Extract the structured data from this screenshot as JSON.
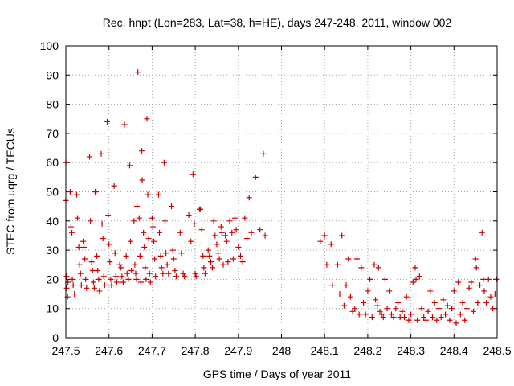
{
  "chart_data": {
    "type": "scatter",
    "title": "Rec. hnpt (Lon=283, Lat=38, h=HE), days 247-248, 2011, window 002",
    "xlabel": "GPS time / Days of year 2011",
    "ylabel": "STEC from uqrg / TECUs",
    "xlim": [
      247.5,
      248.5
    ],
    "ylim": [
      0,
      100
    ],
    "xticks": [
      247.5,
      247.6,
      247.7,
      247.8,
      247.9,
      248,
      248.1,
      248.2,
      248.3,
      248.4,
      248.5
    ],
    "xtick_labels": [
      "247.5",
      "247.6",
      "247.7",
      "247.8",
      "247.9",
      "248",
      "248.1",
      "248.2",
      "248.3",
      "248.4",
      "248.5"
    ],
    "yticks": [
      0,
      10,
      20,
      30,
      40,
      50,
      60,
      70,
      80,
      90,
      100
    ],
    "ytick_labels": [
      "0",
      "10",
      "20",
      "30",
      "40",
      "50",
      "60",
      "70",
      "80",
      "90",
      "100"
    ],
    "grid": true,
    "marker": "+",
    "color": "#cc0000",
    "points": [
      [
        247.5,
        60
      ],
      [
        247.5,
        47
      ],
      [
        247.502,
        21
      ],
      [
        247.502,
        17
      ],
      [
        247.504,
        14
      ],
      [
        247.505,
        19
      ],
      [
        247.51,
        50
      ],
      [
        247.512,
        38
      ],
      [
        247.514,
        36
      ],
      [
        247.515,
        20
      ],
      [
        247.517,
        18
      ],
      [
        247.52,
        15
      ],
      [
        247.525,
        49
      ],
      [
        247.527,
        41
      ],
      [
        247.53,
        31
      ],
      [
        247.532,
        25
      ],
      [
        247.534,
        22
      ],
      [
        247.536,
        18
      ],
      [
        247.54,
        33
      ],
      [
        247.542,
        31
      ],
      [
        247.544,
        27
      ],
      [
        247.546,
        20
      ],
      [
        247.548,
        17
      ],
      [
        247.555,
        62
      ],
      [
        247.557,
        40
      ],
      [
        247.56,
        26
      ],
      [
        247.562,
        23
      ],
      [
        247.564,
        19
      ],
      [
        247.566,
        17
      ],
      [
        247.568,
        50
      ],
      [
        247.57,
        50
      ],
      [
        247.572,
        28
      ],
      [
        247.574,
        23
      ],
      [
        247.576,
        20
      ],
      [
        247.578,
        16
      ],
      [
        247.582,
        63
      ],
      [
        247.584,
        39
      ],
      [
        247.586,
        34
      ],
      [
        247.588,
        21
      ],
      [
        247.59,
        18
      ],
      [
        247.596,
        74
      ],
      [
        247.598,
        42
      ],
      [
        247.6,
        32
      ],
      [
        247.602,
        26
      ],
      [
        247.604,
        20
      ],
      [
        247.606,
        18
      ],
      [
        247.612,
        52
      ],
      [
        247.614,
        29
      ],
      [
        247.616,
        21
      ],
      [
        247.618,
        19
      ],
      [
        247.625,
        25
      ],
      [
        247.628,
        24
      ],
      [
        247.63,
        21
      ],
      [
        247.633,
        19
      ],
      [
        247.636,
        73
      ],
      [
        247.64,
        28
      ],
      [
        247.642,
        22
      ],
      [
        247.645,
        20
      ],
      [
        247.648,
        59
      ],
      [
        247.65,
        33
      ],
      [
        247.652,
        23
      ],
      [
        247.658,
        40
      ],
      [
        247.66,
        25
      ],
      [
        247.662,
        22
      ],
      [
        247.664,
        20
      ],
      [
        247.665,
        45
      ],
      [
        247.667,
        91
      ],
      [
        247.67,
        41
      ],
      [
        247.672,
        28
      ],
      [
        247.674,
        19
      ],
      [
        247.676,
        64
      ],
      [
        247.677,
        54
      ],
      [
        247.68,
        36
      ],
      [
        247.682,
        31
      ],
      [
        247.684,
        24
      ],
      [
        247.686,
        20
      ],
      [
        247.688,
        75
      ],
      [
        247.69,
        49
      ],
      [
        247.692,
        34
      ],
      [
        247.694,
        22
      ],
      [
        247.696,
        19
      ],
      [
        247.7,
        41
      ],
      [
        247.702,
        38
      ],
      [
        247.704,
        33
      ],
      [
        247.706,
        27
      ],
      [
        247.708,
        21
      ],
      [
        247.715,
        49
      ],
      [
        247.717,
        36
      ],
      [
        247.72,
        28
      ],
      [
        247.722,
        24
      ],
      [
        247.725,
        22
      ],
      [
        247.728,
        60
      ],
      [
        247.73,
        40
      ],
      [
        247.732,
        29
      ],
      [
        247.735,
        25
      ],
      [
        247.738,
        22
      ],
      [
        247.745,
        45
      ],
      [
        247.748,
        30
      ],
      [
        247.75,
        27
      ],
      [
        247.753,
        23
      ],
      [
        247.756,
        21
      ],
      [
        247.765,
        36
      ],
      [
        247.768,
        29
      ],
      [
        247.772,
        22
      ],
      [
        247.775,
        21
      ],
      [
        247.785,
        42
      ],
      [
        247.79,
        33
      ],
      [
        247.795,
        56
      ],
      [
        247.798,
        39
      ],
      [
        247.8,
        22
      ],
      [
        247.802,
        21
      ],
      [
        247.81,
        44
      ],
      [
        247.812,
        44
      ],
      [
        247.815,
        37
      ],
      [
        247.818,
        28
      ],
      [
        247.82,
        24
      ],
      [
        247.823,
        22
      ],
      [
        247.83,
        30
      ],
      [
        247.833,
        28
      ],
      [
        247.836,
        26
      ],
      [
        247.84,
        24
      ],
      [
        247.843,
        40
      ],
      [
        247.846,
        35
      ],
      [
        247.85,
        32
      ],
      [
        247.853,
        29
      ],
      [
        247.856,
        27
      ],
      [
        247.86,
        38
      ],
      [
        247.862,
        36
      ],
      [
        247.865,
        25
      ],
      [
        247.87,
        35
      ],
      [
        247.873,
        33
      ],
      [
        247.876,
        26
      ],
      [
        247.88,
        40
      ],
      [
        247.885,
        36
      ],
      [
        247.888,
        27
      ],
      [
        247.892,
        41
      ],
      [
        247.895,
        37
      ],
      [
        247.9,
        31
      ],
      [
        247.905,
        28
      ],
      [
        247.91,
        26
      ],
      [
        247.915,
        41
      ],
      [
        247.92,
        34
      ],
      [
        247.925,
        48
      ],
      [
        247.93,
        36
      ],
      [
        247.94,
        55
      ],
      [
        247.95,
        37
      ],
      [
        247.958,
        63
      ],
      [
        247.962,
        35
      ],
      [
        248.09,
        33
      ],
      [
        248.1,
        35
      ],
      [
        248.105,
        25
      ],
      [
        248.115,
        32
      ],
      [
        248.118,
        18
      ],
      [
        248.13,
        25
      ],
      [
        248.135,
        15
      ],
      [
        248.14,
        35
      ],
      [
        248.145,
        11
      ],
      [
        248.15,
        18
      ],
      [
        248.155,
        27
      ],
      [
        248.16,
        14
      ],
      [
        248.165,
        9
      ],
      [
        248.17,
        10
      ],
      [
        248.175,
        27
      ],
      [
        248.18,
        8
      ],
      [
        248.185,
        24
      ],
      [
        248.19,
        12
      ],
      [
        248.195,
        8
      ],
      [
        248.2,
        16
      ],
      [
        248.205,
        20
      ],
      [
        248.21,
        7
      ],
      [
        248.215,
        25
      ],
      [
        248.218,
        13
      ],
      [
        248.222,
        11
      ],
      [
        248.225,
        24
      ],
      [
        248.228,
        9
      ],
      [
        248.232,
        8
      ],
      [
        248.236,
        7
      ],
      [
        248.24,
        20
      ],
      [
        248.245,
        10
      ],
      [
        248.25,
        16
      ],
      [
        248.255,
        8
      ],
      [
        248.26,
        7
      ],
      [
        248.265,
        10
      ],
      [
        248.27,
        12
      ],
      [
        248.275,
        7
      ],
      [
        248.28,
        9
      ],
      [
        248.285,
        7
      ],
      [
        248.29,
        14
      ],
      [
        248.295,
        6
      ],
      [
        248.3,
        8
      ],
      [
        248.305,
        19
      ],
      [
        248.31,
        24
      ],
      [
        248.312,
        20
      ],
      [
        248.315,
        6
      ],
      [
        248.32,
        21
      ],
      [
        248.325,
        10
      ],
      [
        248.33,
        7
      ],
      [
        248.335,
        6
      ],
      [
        248.34,
        9
      ],
      [
        248.345,
        16
      ],
      [
        248.35,
        7
      ],
      [
        248.355,
        12
      ],
      [
        248.36,
        6
      ],
      [
        248.365,
        10
      ],
      [
        248.37,
        7
      ],
      [
        248.375,
        13
      ],
      [
        248.38,
        8
      ],
      [
        248.385,
        11
      ],
      [
        248.39,
        6
      ],
      [
        248.395,
        10
      ],
      [
        248.4,
        16
      ],
      [
        248.405,
        5
      ],
      [
        248.41,
        19
      ],
      [
        248.415,
        8
      ],
      [
        248.42,
        12
      ],
      [
        248.425,
        6
      ],
      [
        248.43,
        10
      ],
      [
        248.435,
        17
      ],
      [
        248.44,
        19
      ],
      [
        248.445,
        9
      ],
      [
        248.45,
        27
      ],
      [
        248.452,
        24
      ],
      [
        248.455,
        12
      ],
      [
        248.46,
        18
      ],
      [
        248.465,
        36
      ],
      [
        248.468,
        20
      ],
      [
        248.47,
        16
      ],
      [
        248.475,
        12
      ],
      [
        248.48,
        20
      ],
      [
        248.485,
        14
      ],
      [
        248.49,
        10
      ],
      [
        248.495,
        15
      ],
      [
        248.498,
        20
      ]
    ]
  }
}
